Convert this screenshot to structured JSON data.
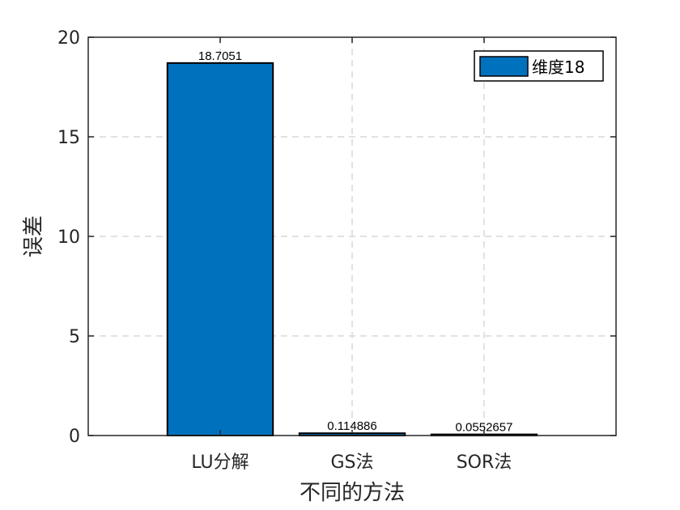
{
  "chart_data": {
    "type": "bar",
    "categories": [
      "LU分解",
      "GS法",
      "SOR法"
    ],
    "series": [
      {
        "name": "维度18",
        "values": [
          18.7051,
          0.114886,
          0.0552657
        ],
        "data_labels": [
          "18.7051",
          "0.114886",
          "0.0552657"
        ],
        "color": "#0072BD"
      }
    ],
    "title": "",
    "xlabel": "不同的方法",
    "ylabel": "误差",
    "ylim": [
      0,
      20
    ],
    "yticks": [
      0,
      5,
      10,
      15,
      20
    ],
    "grid": true,
    "legend_position": "top-right"
  }
}
